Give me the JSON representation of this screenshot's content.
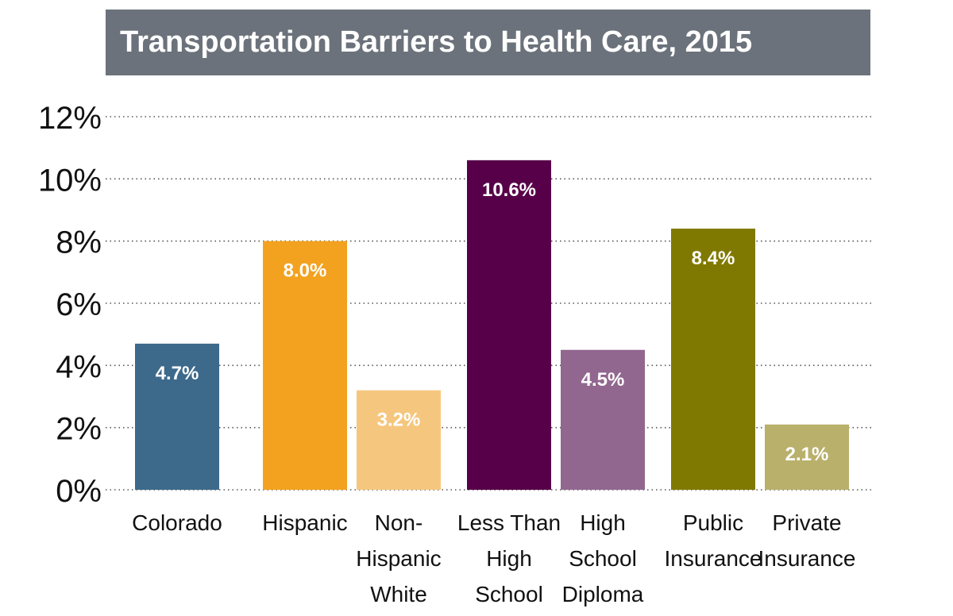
{
  "chart_data": {
    "type": "bar",
    "title": "Transportation Barriers to Health Care, 2015",
    "xlabel": "",
    "ylabel": "",
    "ylim": [
      0,
      12
    ],
    "yticks": [
      0,
      2,
      4,
      6,
      8,
      10,
      12
    ],
    "ytick_labels": [
      "0%",
      "2%",
      "4%",
      "6%",
      "8%",
      "10%",
      "12%"
    ],
    "grid": true,
    "categories": [
      [
        "Colorado"
      ],
      [
        "Hispanic"
      ],
      [
        "Non-",
        "Hispanic",
        "White"
      ],
      [
        "Less Than",
        "High",
        "School"
      ],
      [
        "High",
        "School",
        "Diploma"
      ],
      [
        "Public",
        "Insurance"
      ],
      [
        "Private",
        "Insurance"
      ]
    ],
    "values": [
      4.7,
      8.0,
      3.2,
      10.6,
      4.5,
      8.4,
      2.1
    ],
    "value_labels": [
      "4.7%",
      "8.0%",
      "3.2%",
      "10.6%",
      "4.5%",
      "8.4%",
      "2.1%"
    ],
    "colors": [
      "#3d6a8b",
      "#f3a21f",
      "#f5c77e",
      "#570049",
      "#91678f",
      "#807901",
      "#b9b06c"
    ]
  }
}
